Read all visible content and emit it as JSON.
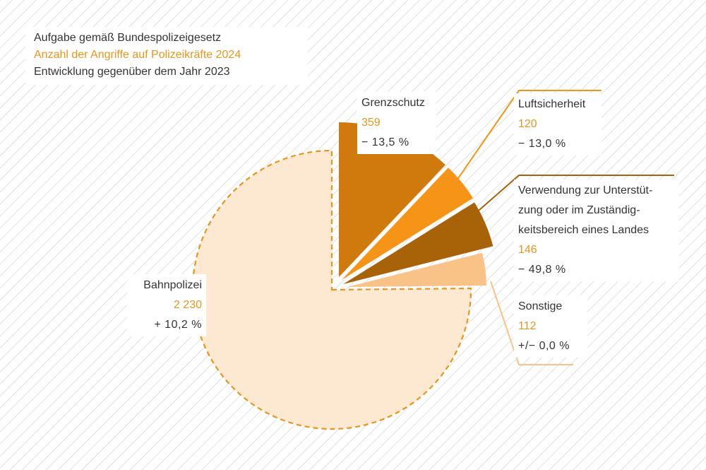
{
  "legend": {
    "line1": "Aufgabe gemäß Bundespolizeigesetz",
    "line2": "Anzahl der Angriffe auf Polizeikräfte 2024",
    "line3": "Entwicklung gegenüber dem Jahr 2023"
  },
  "colors": {
    "hatch": "#cfcfcf",
    "text": "#333333",
    "value": "#e8951c",
    "bahn_fill": "#fde9d2",
    "bahn_stroke": "#e8951c",
    "grenz": "#d07a0e",
    "luft": "#f59416",
    "verw": "#a86208",
    "sonst": "#f9c387"
  },
  "chart_data": {
    "type": "pie",
    "title": "",
    "slices": [
      {
        "label": "Grenzschutz",
        "value": 359,
        "value_text": "359",
        "change": "− 13,5 %",
        "color": "#d07a0e"
      },
      {
        "label": "Luftsicherheit",
        "value": 120,
        "value_text": "120",
        "change": "− 13,0 %",
        "color": "#f59416"
      },
      {
        "label": "Verwendung zur Unterstützung oder im Zuständigkeitsbereich eines Landes",
        "label_lines": [
          "Verwendung zur Unterstüt-",
          "zung oder im Zuständig-",
          "keitsbereich eines Landes"
        ],
        "value": 146,
        "value_text": "146",
        "change": "− 49,8 %",
        "color": "#a86208"
      },
      {
        "label": "Sonstige",
        "value": 112,
        "value_text": "112",
        "change": "+/− 0,0 %",
        "color": "#f9c387"
      },
      {
        "label": "Bahnpolizei",
        "value": 2230,
        "value_text": "2 230",
        "change": "+ 10,2 %",
        "color": "#fde9d2"
      }
    ],
    "legend": "top-left"
  }
}
